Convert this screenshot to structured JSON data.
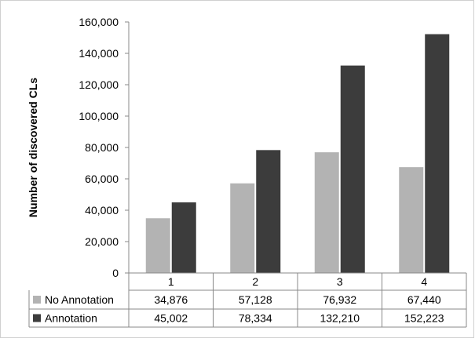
{
  "chart_data": {
    "type": "bar",
    "title": "",
    "xlabel": "",
    "ylabel": "Number of discovered CLs",
    "ylim": [
      0,
      160000
    ],
    "ytick_step": 20000,
    "ytick_labels": [
      "0",
      "20,000",
      "40,000",
      "60,000",
      "80,000",
      "100,000",
      "120,000",
      "140,000",
      "160,000"
    ],
    "grid": false,
    "legend_placement": "data-table",
    "categories": [
      "1",
      "2",
      "3",
      "4"
    ],
    "series": [
      {
        "name": "No Annotation",
        "color": "#b3b3b3",
        "values": [
          34876,
          57128,
          76932,
          67440
        ],
        "labels": [
          "34,876",
          "57,128",
          "76,932",
          "67,440"
        ]
      },
      {
        "name": "Annotation",
        "color": "#3c3c3c",
        "values": [
          45002,
          78334,
          132210,
          152223
        ],
        "labels": [
          "45,002",
          "78,334",
          "132,210",
          "152,223"
        ]
      }
    ]
  }
}
